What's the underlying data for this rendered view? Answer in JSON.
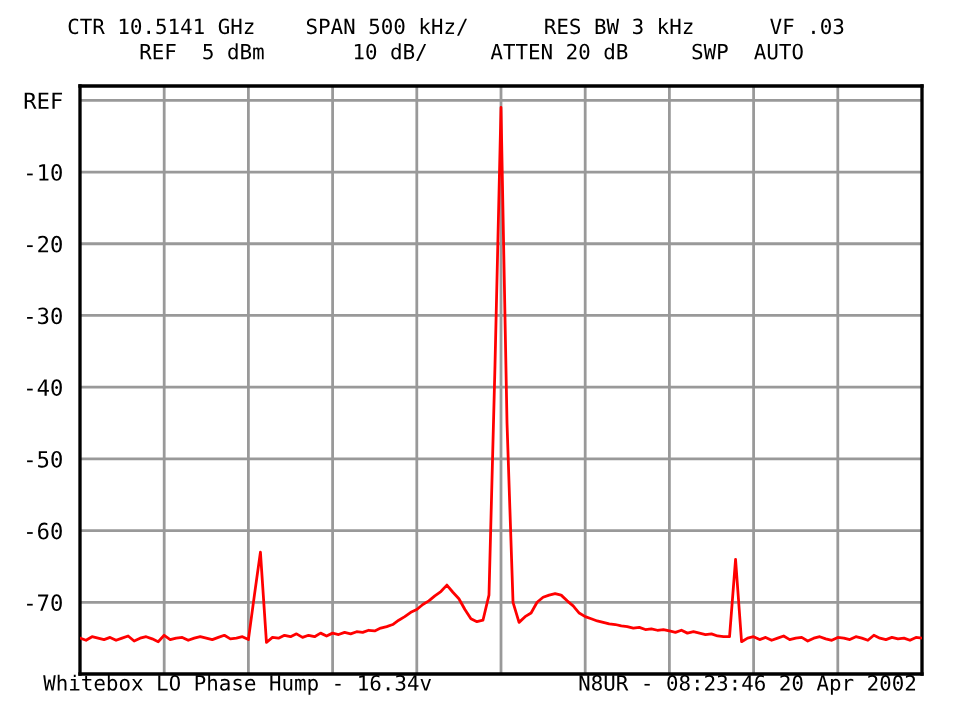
{
  "chart_data": {
    "type": "line",
    "annotations": [
      "CTR 10.5141 GHz    SPAN 500 kHz/      RES BW 3 kHz      VF .03",
      "REF  5 dBm       10 dB/     ATTEN 20 dB     SWP  AUTO",
      "Whitebox LO Phase Hump - 16.34v",
      "N8UR - 08:23:46 20 Apr 2002"
    ],
    "categories": [
      null,
      null,
      null,
      null,
      null,
      null,
      null,
      null,
      null,
      null,
      null,
      null,
      null,
      null,
      null,
      null,
      null,
      null,
      null,
      null,
      null,
      null,
      null,
      null,
      null,
      null,
      null,
      null,
      null,
      null,
      null,
      null,
      null,
      null,
      null,
      null,
      null,
      null,
      null,
      null,
      null,
      null,
      null,
      null,
      null,
      null,
      null,
      null,
      null,
      null,
      null,
      null,
      null,
      null,
      null,
      null,
      null,
      null,
      null,
      null,
      null,
      null,
      null,
      null,
      null,
      null,
      null,
      null,
      null,
      null,
      null,
      null,
      null,
      null,
      null,
      null,
      null,
      null,
      null,
      null,
      null,
      null,
      null,
      null,
      null,
      null,
      null,
      null,
      null,
      null,
      null,
      null,
      null,
      null,
      null,
      null,
      null,
      null,
      null,
      null,
      null,
      null,
      null,
      null,
      null,
      null,
      null,
      null,
      null,
      null,
      null,
      null,
      null,
      null,
      null,
      null,
      null,
      null,
      null,
      null,
      null,
      null,
      null,
      null,
      null,
      null,
      null,
      null,
      null,
      null,
      null,
      null,
      null,
      null,
      null,
      null,
      null,
      null,
      null,
      null,
      null
    ],
    "series": [
      {
        "color": "#ff0000",
        "values": [
          -75,
          -75.3,
          -74.8,
          -75,
          -75.2,
          -74.9,
          -75.3,
          -75,
          -74.7,
          -75.4,
          -75,
          -74.8,
          -75.1,
          -75.5,
          -74.6,
          -75.2,
          -75,
          -74.9,
          -75.3,
          -75,
          -74.8,
          -75,
          -75.2,
          -74.9,
          -74.6,
          -75.1,
          -75,
          -74.8,
          -75.2,
          -69,
          -63,
          -75.6,
          -74.9,
          -75,
          -74.6,
          -74.8,
          -74.4,
          -74.9,
          -74.6,
          -74.8,
          -74.3,
          -74.7,
          -74.3,
          -74.5,
          -74.2,
          -74.4,
          -74.1,
          -74.2,
          -73.9,
          -74,
          -73.6,
          -73.4,
          -73.1,
          -72.5,
          -72,
          -71.4,
          -71,
          -70.3,
          -69.8,
          -69.1,
          -68.5,
          -67.6,
          -68.6,
          -69.5,
          -71,
          -72.3,
          -72.7,
          -72.5,
          -69,
          -37,
          -1,
          -45,
          -70,
          -72.8,
          -72,
          -71.5,
          -70,
          -69.3,
          -69,
          -68.8,
          -69,
          -69.8,
          -70.5,
          -71.5,
          -72,
          -72.3,
          -72.6,
          -72.8,
          -73,
          -73.1,
          -73.3,
          -73.4,
          -73.6,
          -73.5,
          -73.8,
          -73.7,
          -73.9,
          -73.8,
          -74,
          -74.2,
          -73.9,
          -74.3,
          -74.1,
          -74.3,
          -74.5,
          -74.4,
          -74.7,
          -74.8,
          -74.8,
          -64,
          -75.5,
          -75,
          -74.8,
          -75.2,
          -74.9,
          -75.3,
          -75,
          -74.7,
          -75.2,
          -75,
          -74.9,
          -75.4,
          -75,
          -74.8,
          -75.1,
          -75.3,
          -74.9,
          -75,
          -75.2,
          -74.8,
          -75,
          -75.3,
          -74.6,
          -75,
          -75.2,
          -74.9,
          -75.1,
          -75,
          -75.3,
          -74.9,
          -75
        ]
      }
    ],
    "ylim": [
      -80,
      2
    ],
    "yticks": [
      {
        "value": 0,
        "label": "REF"
      },
      -10,
      -20,
      -30,
      -40,
      -50,
      -60,
      -70
    ],
    "grid": true,
    "marker": "none",
    "line_style": "solid"
  }
}
